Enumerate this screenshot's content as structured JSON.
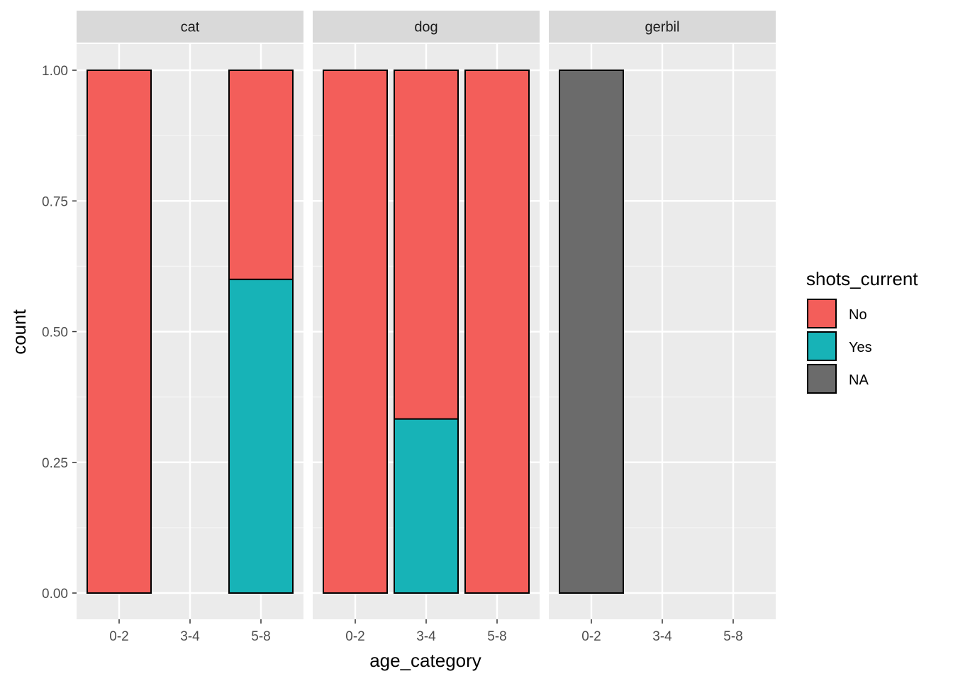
{
  "chart_data": {
    "type": "bar",
    "stacked": true,
    "position": "fill",
    "facet_by": "species",
    "panels": [
      "cat",
      "dog",
      "gerbil"
    ],
    "categories": [
      "0-2",
      "3-4",
      "5-8"
    ],
    "xlabel": "age_category",
    "ylabel": "count",
    "ylim": [
      0,
      1
    ],
    "yticks": [
      "0.00",
      "0.25",
      "0.50",
      "0.75",
      "1.00"
    ],
    "ytick_values": [
      0,
      0.25,
      0.5,
      0.75,
      1
    ],
    "grid": true,
    "legend": {
      "title": "shots_current",
      "placement": "right",
      "entries": [
        {
          "label": "No",
          "color": "#F35E5A"
        },
        {
          "label": "Yes",
          "color": "#17B3B7"
        },
        {
          "label": "NA",
          "color": "#6B6B6B"
        }
      ]
    },
    "bars": [
      {
        "panel": "cat",
        "category": "0-2",
        "stack": [
          {
            "group": "No",
            "value": 1.0
          }
        ]
      },
      {
        "panel": "cat",
        "category": "5-8",
        "stack": [
          {
            "group": "Yes",
            "value": 0.6
          },
          {
            "group": "No",
            "value": 0.4
          }
        ]
      },
      {
        "panel": "dog",
        "category": "0-2",
        "stack": [
          {
            "group": "No",
            "value": 1.0
          }
        ]
      },
      {
        "panel": "dog",
        "category": "3-4",
        "stack": [
          {
            "group": "Yes",
            "value": 0.333
          },
          {
            "group": "No",
            "value": 0.667
          }
        ]
      },
      {
        "panel": "dog",
        "category": "5-8",
        "stack": [
          {
            "group": "No",
            "value": 1.0
          }
        ]
      },
      {
        "panel": "gerbil",
        "category": "0-2",
        "stack": [
          {
            "group": "NA",
            "value": 1.0
          }
        ]
      }
    ]
  }
}
